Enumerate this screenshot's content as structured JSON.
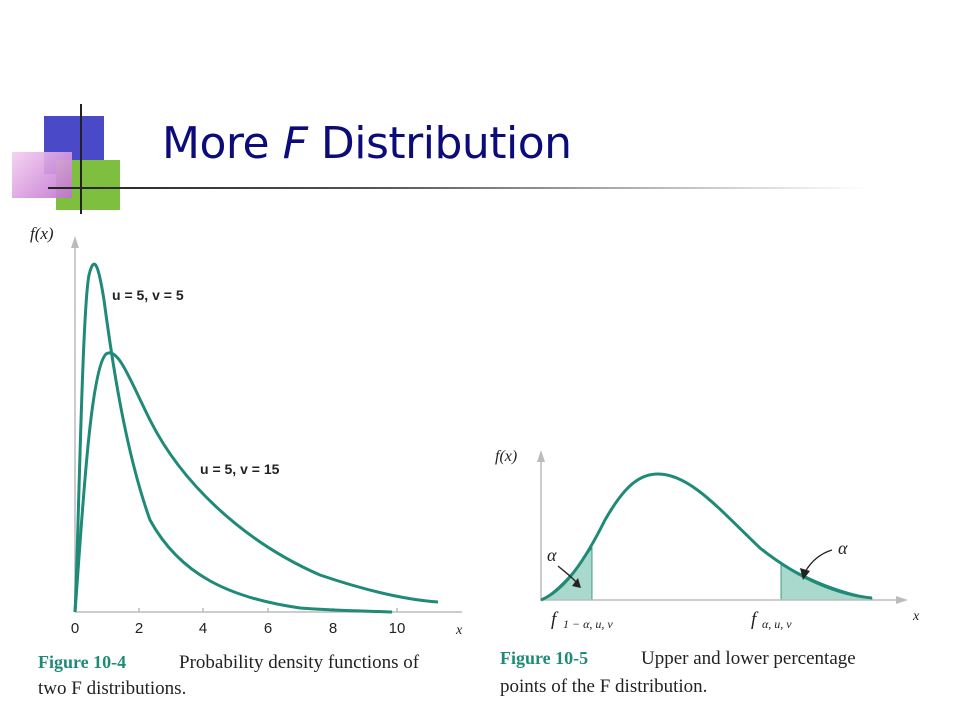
{
  "slide": {
    "title_prefix": "More ",
    "title_italic": "F",
    "title_suffix": " Distribution"
  },
  "figure_left": {
    "y_axis_label": "f(x)",
    "x_axis_label": "x",
    "x_ticks": [
      "0",
      "2",
      "4",
      "6",
      "8",
      "10"
    ],
    "curve_labels": [
      "u = 5, v = 5",
      "u = 5, v = 15"
    ],
    "caption_label": "Figure 10-4",
    "caption_line1": "Probability density functions of",
    "caption_line2": "two F distributions."
  },
  "figure_right": {
    "y_axis_label": "f(x)",
    "x_axis_label": "x",
    "alpha_left": "α",
    "alpha_right": "α",
    "lower_point_label": "f",
    "lower_point_sub": "1 − α, u, v",
    "upper_point_label": "f",
    "upper_point_sub": "α, u, v",
    "caption_label": "Figure 10-5",
    "caption_line1": "Upper and lower percentage",
    "caption_line2": "points of the F distribution."
  },
  "colors": {
    "title": "#0b0b7a",
    "curve": "#1f8a78",
    "shade": "#a9d8cc",
    "caption_label": "#1f8a78"
  }
}
